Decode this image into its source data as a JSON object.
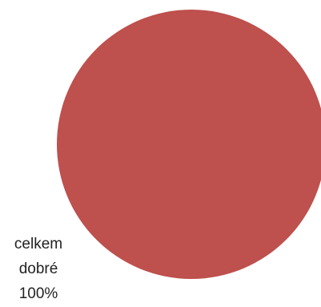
{
  "chart_data": {
    "type": "pie",
    "categories": [
      "celkem dobré"
    ],
    "values": [
      100
    ],
    "labels": [
      {
        "lines": [
          "celkem",
          "dobré",
          "100%"
        ]
      }
    ],
    "colors": [
      "#BE504D"
    ]
  }
}
